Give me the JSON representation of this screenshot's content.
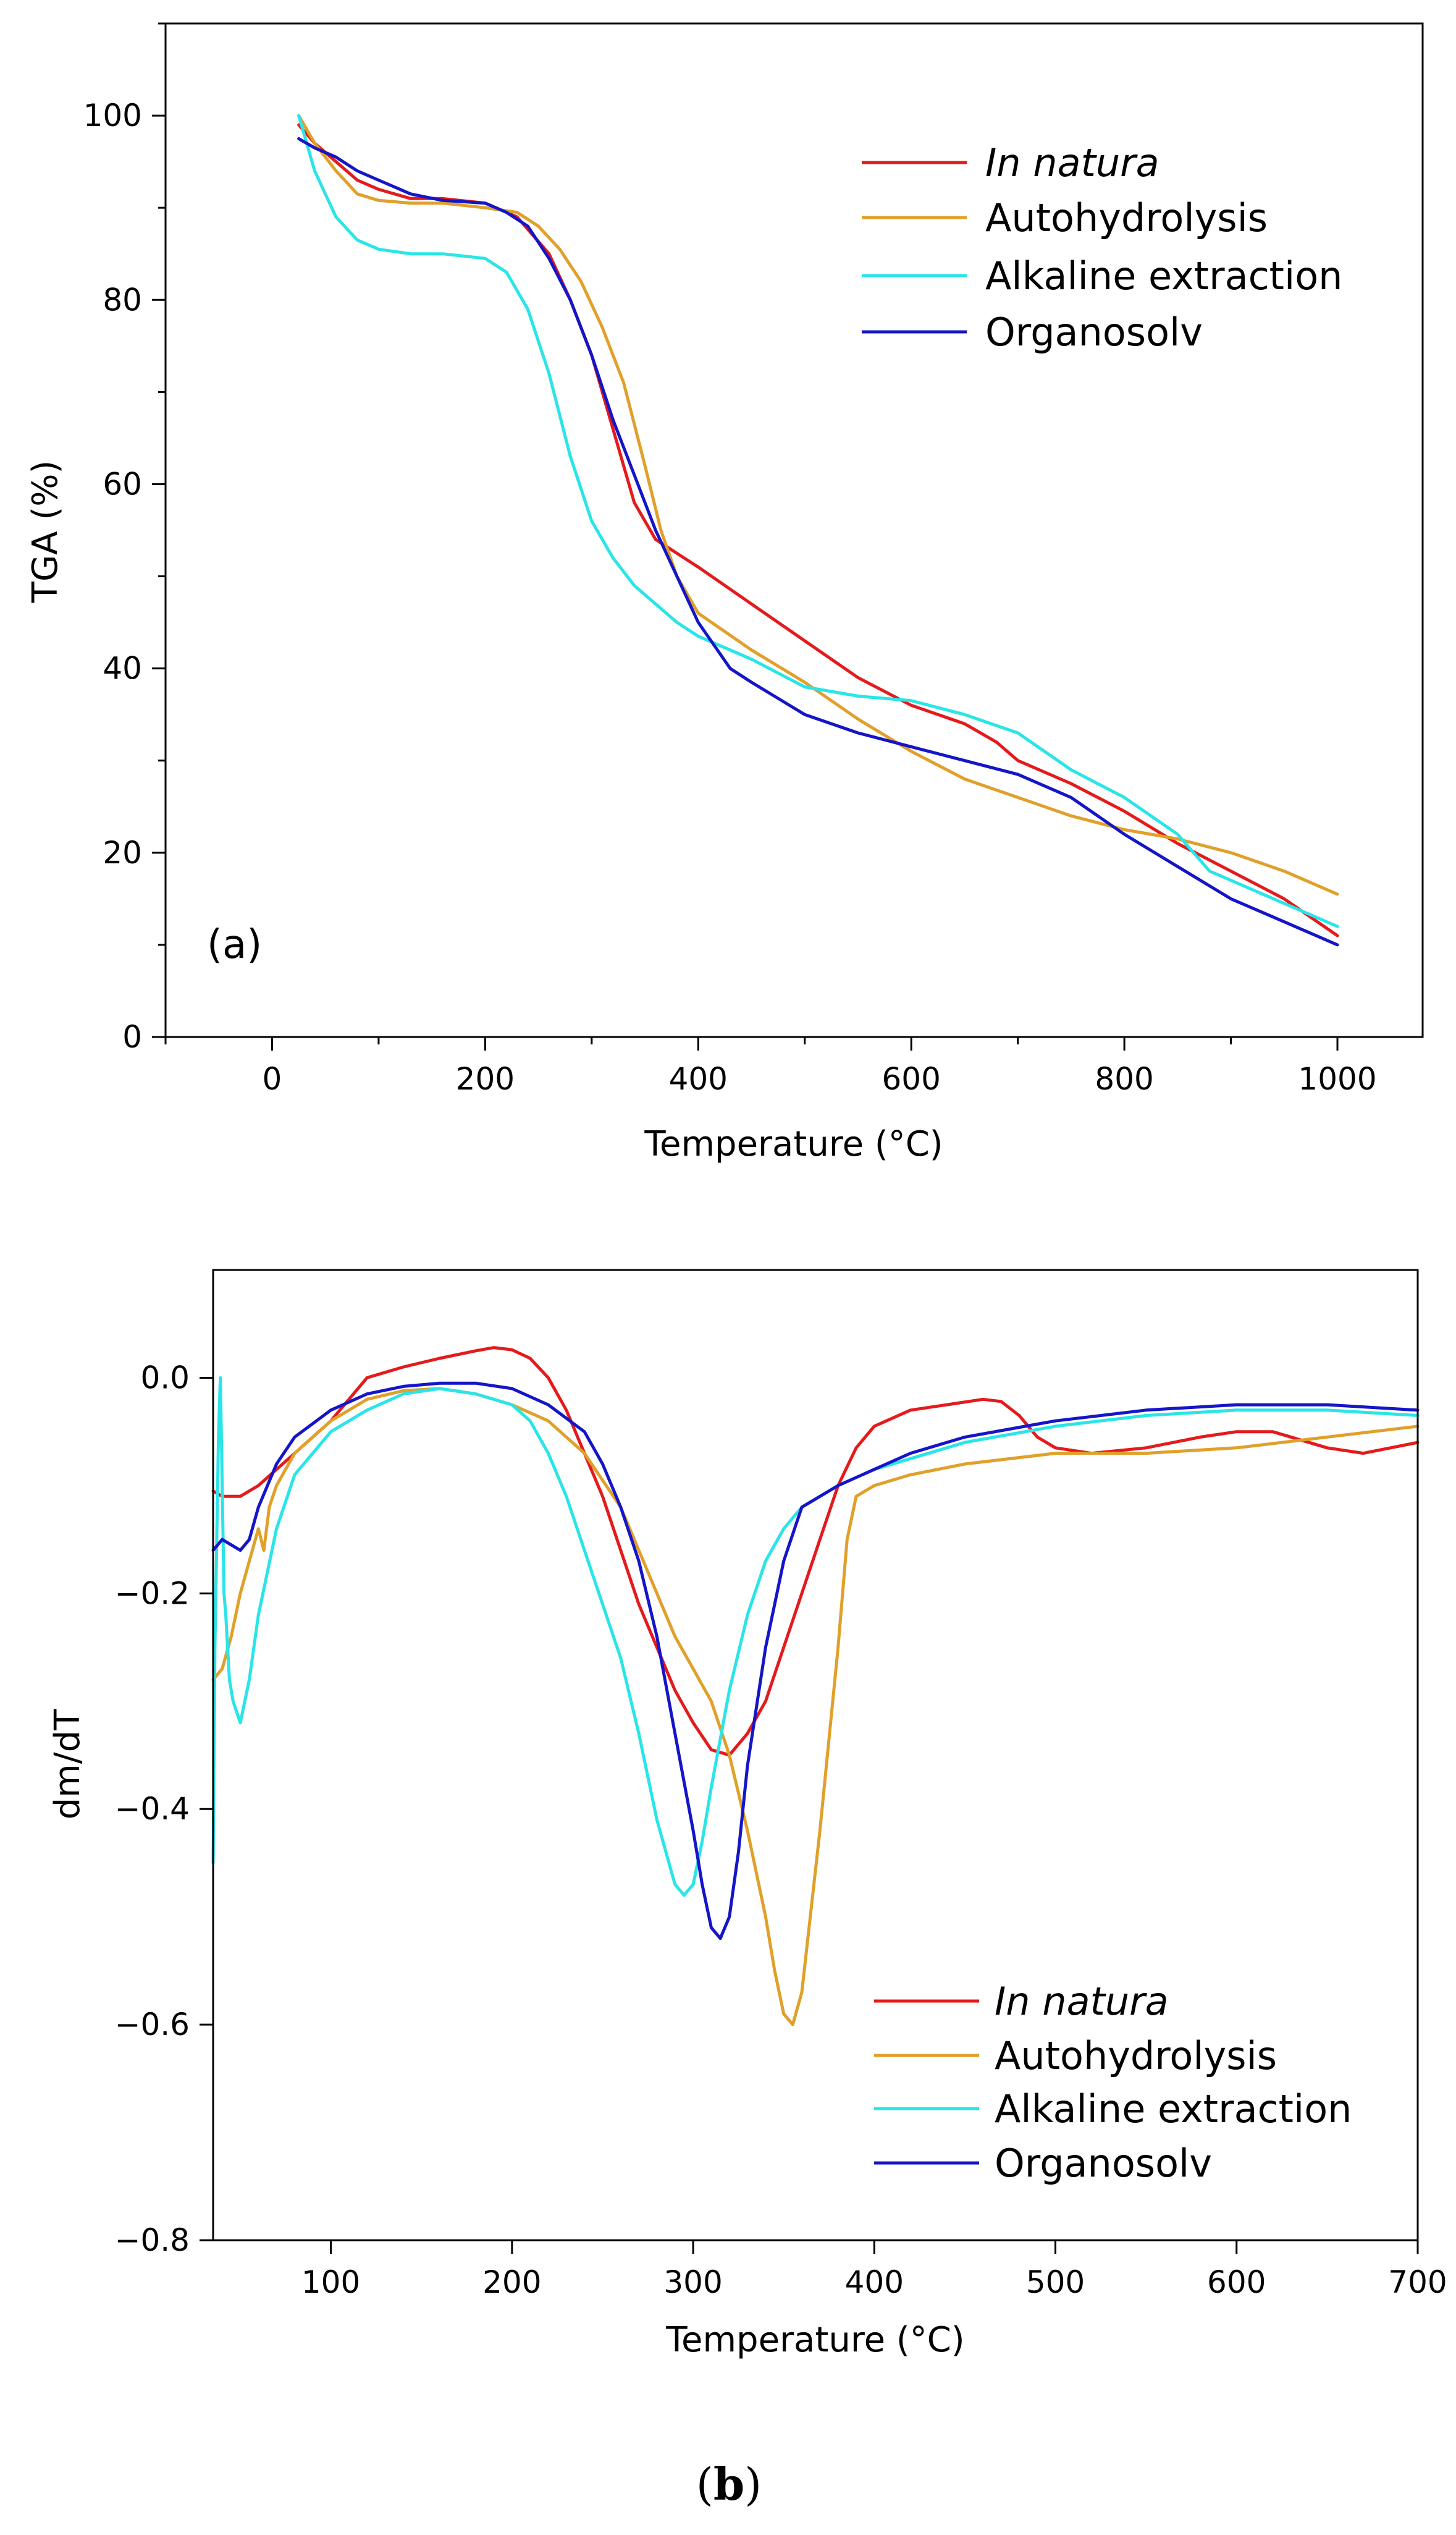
{
  "chart_data": [
    {
      "id": "a",
      "type": "line",
      "panel_label": "(a)",
      "xlabel": "Temperature (°C)",
      "ylabel": "TGA (%)",
      "xlim": [
        -100,
        1080
      ],
      "ylim": [
        0,
        110
      ],
      "xticks": [
        0,
        200,
        400,
        600,
        800,
        1000
      ],
      "yticks": [
        0,
        20,
        40,
        60,
        80,
        100
      ],
      "legend_position": "top-right",
      "series": [
        {
          "name": "In natura",
          "italic": true,
          "color": "#e41a1c",
          "x": [
            25,
            40,
            60,
            80,
            100,
            130,
            160,
            200,
            230,
            260,
            280,
            300,
            320,
            340,
            360,
            380,
            400,
            450,
            500,
            550,
            600,
            650,
            680,
            700,
            750,
            800,
            850,
            900,
            950,
            1000
          ],
          "y": [
            99,
            97,
            95,
            93,
            92,
            91,
            91,
            90.5,
            89,
            85,
            80,
            74,
            66,
            58,
            54,
            52.5,
            51,
            47,
            43,
            39,
            36,
            34,
            32,
            30,
            27.5,
            24.5,
            21,
            18,
            15,
            11
          ]
        },
        {
          "name": "Autohydrolysis",
          "italic": false,
          "color": "#e0a02a",
          "x": [
            25,
            40,
            60,
            80,
            100,
            130,
            160,
            200,
            230,
            250,
            270,
            290,
            310,
            330,
            350,
            365,
            380,
            400,
            450,
            500,
            550,
            600,
            650,
            700,
            750,
            800,
            850,
            900,
            950,
            1000
          ],
          "y": [
            100,
            97,
            94,
            91.5,
            90.8,
            90.5,
            90.5,
            90,
            89.5,
            88,
            85.5,
            82,
            77,
            71,
            62,
            55,
            50,
            46,
            42,
            38.5,
            34.5,
            31,
            28,
            26,
            24,
            22.5,
            21.5,
            20,
            18,
            15.5
          ]
        },
        {
          "name": "Alkaline extraction",
          "italic": false,
          "color": "#29e5e8",
          "x": [
            25,
            40,
            60,
            80,
            100,
            130,
            160,
            200,
            220,
            240,
            260,
            280,
            300,
            320,
            340,
            360,
            380,
            400,
            450,
            500,
            550,
            600,
            650,
            700,
            750,
            800,
            850,
            880,
            900,
            950,
            1000
          ],
          "y": [
            100,
            94,
            89,
            86.5,
            85.5,
            85,
            85,
            84.5,
            83,
            79,
            72,
            63,
            56,
            52,
            49,
            47,
            45,
            43.5,
            41,
            38,
            37,
            36.5,
            35,
            33,
            29,
            26,
            22,
            18,
            17,
            14.5,
            12
          ]
        },
        {
          "name": "Organosolv",
          "italic": false,
          "color": "#1515c8",
          "x": [
            25,
            40,
            60,
            80,
            100,
            130,
            160,
            200,
            220,
            240,
            260,
            280,
            300,
            320,
            340,
            360,
            380,
            400,
            430,
            450,
            500,
            550,
            600,
            650,
            700,
            750,
            800,
            850,
            900,
            950,
            1000
          ],
          "y": [
            97.5,
            96.5,
            95.5,
            94,
            93,
            91.5,
            90.8,
            90.5,
            89.5,
            88,
            84.5,
            80,
            74,
            67,
            61,
            55,
            50,
            45,
            40,
            38.5,
            35,
            33,
            31.5,
            30,
            28.5,
            26,
            22,
            18.5,
            15,
            12.5,
            10
          ]
        }
      ]
    },
    {
      "id": "b",
      "type": "line",
      "xlabel": "Temperature (°C)",
      "ylabel": "dm/dT",
      "xlim": [
        35,
        700
      ],
      "ylim": [
        -0.8,
        0.1
      ],
      "xticks": [
        100,
        200,
        300,
        400,
        500,
        600,
        700
      ],
      "yticks": [
        -0.8,
        -0.6,
        -0.4,
        -0.2,
        0.0
      ],
      "ytick_labels": [
        "−0.8",
        "−0.6",
        "−0.4",
        "−0.2",
        "0.0"
      ],
      "legend_position": "bottom-right",
      "series": [
        {
          "name": "In natura",
          "italic": true,
          "color": "#e41a1c",
          "x": [
            35,
            40,
            50,
            60,
            70,
            80,
            100,
            120,
            140,
            160,
            180,
            190,
            200,
            210,
            220,
            230,
            240,
            250,
            260,
            270,
            280,
            290,
            300,
            310,
            320,
            330,
            340,
            350,
            360,
            370,
            380,
            390,
            400,
            420,
            440,
            460,
            470,
            480,
            490,
            500,
            520,
            550,
            580,
            600,
            620,
            650,
            670,
            700
          ],
          "y": [
            -0.105,
            -0.11,
            -0.11,
            -0.1,
            -0.085,
            -0.07,
            -0.04,
            0.0,
            0.01,
            0.018,
            0.025,
            0.028,
            0.026,
            0.018,
            0.0,
            -0.03,
            -0.07,
            -0.11,
            -0.16,
            -0.21,
            -0.25,
            -0.29,
            -0.32,
            -0.345,
            -0.35,
            -0.33,
            -0.3,
            -0.25,
            -0.2,
            -0.15,
            -0.1,
            -0.065,
            -0.045,
            -0.03,
            -0.025,
            -0.02,
            -0.022,
            -0.035,
            -0.055,
            -0.065,
            -0.07,
            -0.065,
            -0.055,
            -0.05,
            -0.05,
            -0.065,
            -0.07,
            -0.06
          ]
        },
        {
          "name": "Autohydrolysis",
          "italic": false,
          "color": "#e0a02a",
          "x": [
            35,
            40,
            45,
            50,
            55,
            60,
            63,
            66,
            70,
            80,
            100,
            120,
            140,
            160,
            180,
            200,
            220,
            240,
            260,
            270,
            280,
            290,
            300,
            310,
            320,
            330,
            340,
            345,
            350,
            355,
            360,
            370,
            380,
            385,
            390,
            400,
            420,
            450,
            500,
            550,
            600,
            650,
            700
          ],
          "y": [
            -0.28,
            -0.27,
            -0.24,
            -0.2,
            -0.17,
            -0.14,
            -0.16,
            -0.12,
            -0.1,
            -0.07,
            -0.04,
            -0.02,
            -0.012,
            -0.01,
            -0.015,
            -0.025,
            -0.04,
            -0.07,
            -0.12,
            -0.16,
            -0.2,
            -0.24,
            -0.27,
            -0.3,
            -0.35,
            -0.42,
            -0.5,
            -0.55,
            -0.59,
            -0.6,
            -0.57,
            -0.42,
            -0.25,
            -0.15,
            -0.11,
            -0.1,
            -0.09,
            -0.08,
            -0.07,
            -0.07,
            -0.065,
            -0.055,
            -0.045
          ]
        },
        {
          "name": "Alkaline extraction",
          "italic": false,
          "color": "#29e5e8",
          "x": [
            35,
            36,
            37,
            38,
            39,
            40,
            41,
            42,
            44,
            46,
            48,
            50,
            55,
            60,
            70,
            80,
            100,
            120,
            140,
            160,
            180,
            200,
            210,
            220,
            230,
            240,
            250,
            260,
            270,
            280,
            290,
            295,
            300,
            305,
            310,
            320,
            330,
            340,
            350,
            360,
            380,
            400,
            420,
            450,
            500,
            550,
            600,
            650,
            700
          ],
          "y": [
            -0.45,
            -0.25,
            -0.15,
            -0.05,
            0.0,
            -0.1,
            -0.2,
            -0.22,
            -0.28,
            -0.3,
            -0.31,
            -0.32,
            -0.28,
            -0.22,
            -0.14,
            -0.09,
            -0.05,
            -0.03,
            -0.015,
            -0.01,
            -0.015,
            -0.025,
            -0.04,
            -0.07,
            -0.11,
            -0.16,
            -0.21,
            -0.26,
            -0.33,
            -0.41,
            -0.47,
            -0.48,
            -0.47,
            -0.43,
            -0.38,
            -0.29,
            -0.22,
            -0.17,
            -0.14,
            -0.12,
            -0.1,
            -0.085,
            -0.075,
            -0.06,
            -0.045,
            -0.035,
            -0.03,
            -0.03,
            -0.035
          ]
        },
        {
          "name": "Organosolv",
          "italic": false,
          "color": "#1515c8",
          "x": [
            35,
            40,
            45,
            50,
            55,
            60,
            70,
            80,
            100,
            120,
            140,
            160,
            180,
            200,
            220,
            240,
            250,
            260,
            270,
            280,
            290,
            300,
            305,
            310,
            315,
            320,
            325,
            330,
            340,
            350,
            360,
            380,
            400,
            420,
            450,
            500,
            550,
            600,
            650,
            700
          ],
          "y": [
            -0.16,
            -0.15,
            -0.155,
            -0.16,
            -0.15,
            -0.12,
            -0.08,
            -0.055,
            -0.03,
            -0.015,
            -0.008,
            -0.005,
            -0.005,
            -0.01,
            -0.025,
            -0.05,
            -0.08,
            -0.12,
            -0.17,
            -0.24,
            -0.33,
            -0.42,
            -0.47,
            -0.51,
            -0.52,
            -0.5,
            -0.44,
            -0.36,
            -0.25,
            -0.17,
            -0.12,
            -0.1,
            -0.085,
            -0.07,
            -0.055,
            -0.04,
            -0.03,
            -0.025,
            -0.025,
            -0.03
          ]
        }
      ]
    }
  ],
  "caption": {
    "open": "(",
    "letter": "b",
    "close": ")"
  }
}
